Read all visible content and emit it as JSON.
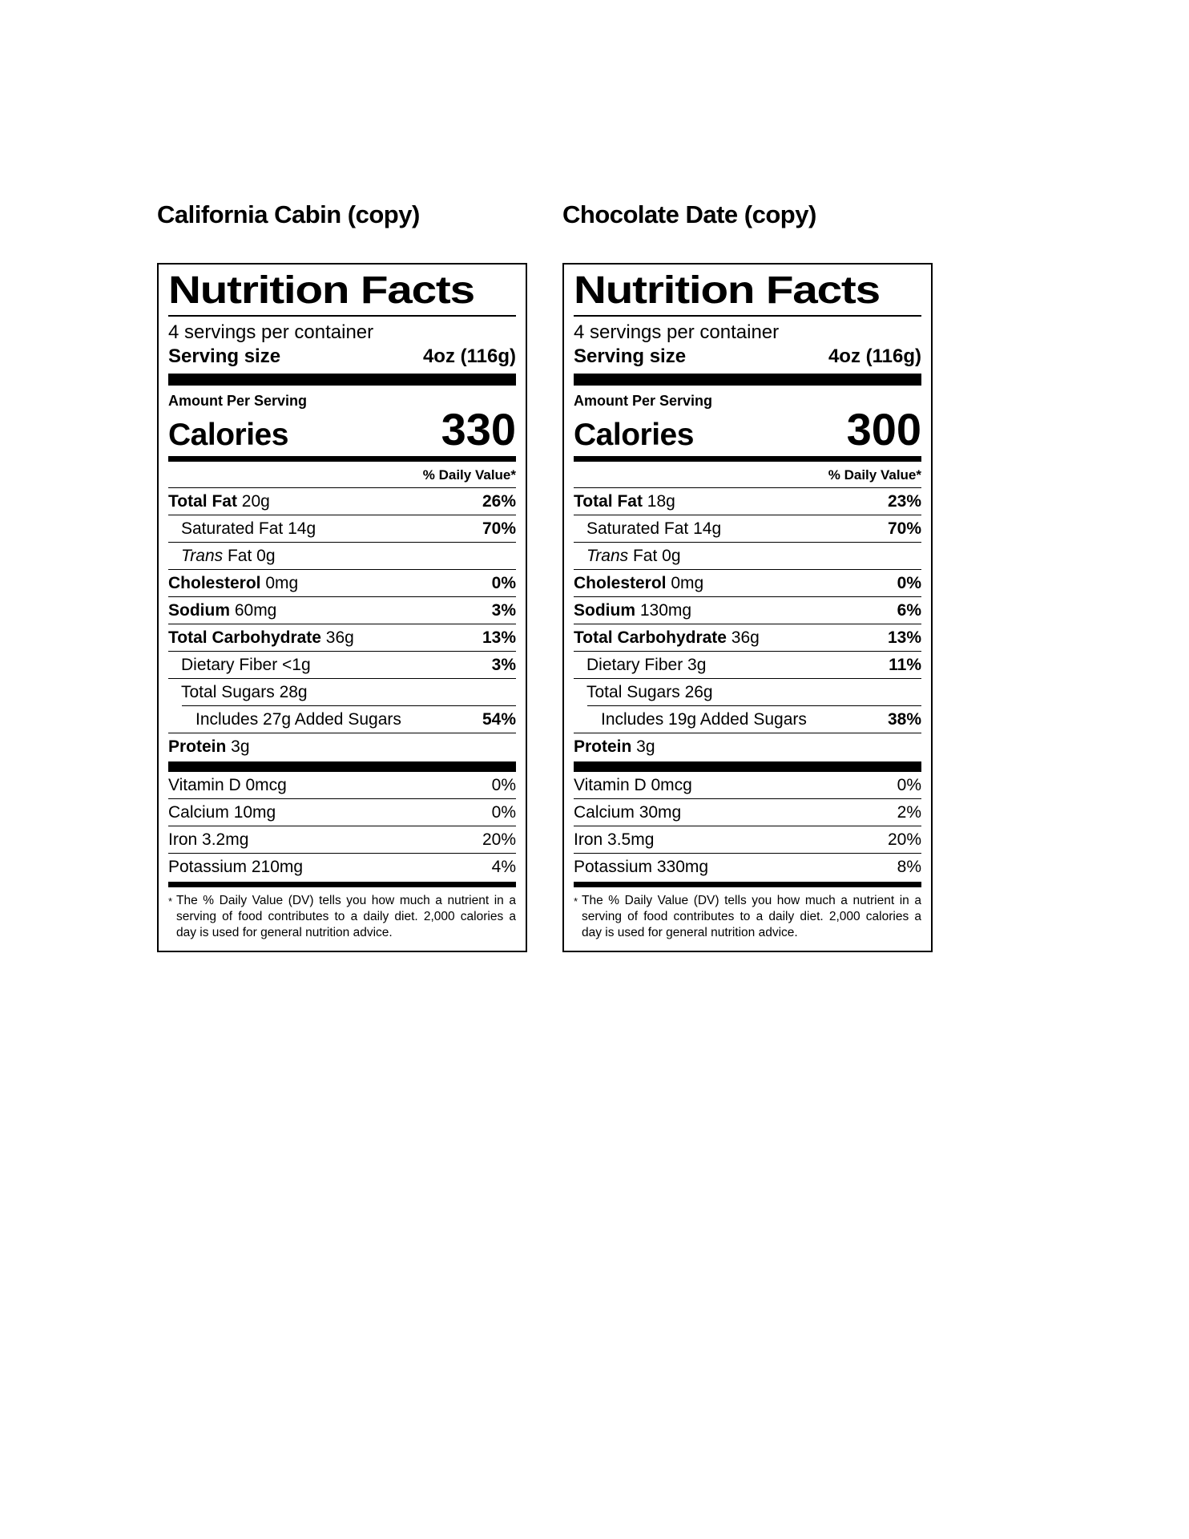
{
  "colors": {
    "ink": "#000000",
    "paper": "#ffffff"
  },
  "labels": [
    {
      "title": "California Cabin (copy)",
      "heading": "Nutrition Facts",
      "servings_per_container": "4 servings per container",
      "serving_size_label": "Serving size",
      "serving_size_value": "4oz (116g)",
      "amount_per_serving": "Amount Per Serving",
      "calories_label": "Calories",
      "calories_value": "330",
      "daily_value_header": "% Daily Value*",
      "main_rows": [
        {
          "name": "Total Fat",
          "amount": "20g",
          "dv": "26%",
          "name_bold": true,
          "dv_bold": true,
          "indent": 0
        },
        {
          "name": "Saturated Fat",
          "amount": "14g",
          "dv": "70%",
          "dv_bold": true,
          "indent": 1
        },
        {
          "name_italic": "Trans",
          "name": "Fat",
          "amount": "0g",
          "dv": "",
          "indent": 1
        },
        {
          "name": "Cholesterol",
          "amount": "0mg",
          "dv": "0%",
          "name_bold": true,
          "dv_bold": true,
          "indent": 0
        },
        {
          "name": "Sodium",
          "amount": "60mg",
          "dv": "3%",
          "name_bold": true,
          "dv_bold": true,
          "indent": 0
        },
        {
          "name": "Total Carbohydrate",
          "amount": "36g",
          "dv": "13%",
          "name_bold": true,
          "dv_bold": true,
          "indent": 0
        },
        {
          "name": "Dietary Fiber",
          "amount": "<1g",
          "dv": "3%",
          "dv_bold": true,
          "indent": 1
        },
        {
          "name": "Total Sugars",
          "amount": "28g",
          "dv": "",
          "indent": 1
        },
        {
          "name": "Includes 27g Added Sugars",
          "amount": "",
          "dv": "54%",
          "dv_bold": true,
          "indent": 2,
          "divider_indent": true
        },
        {
          "name": "Protein",
          "amount": "3g",
          "dv": "",
          "name_bold": true,
          "indent": 0
        }
      ],
      "vitamin_rows": [
        {
          "name": "Vitamin D",
          "amount": "0mcg",
          "dv": "0%"
        },
        {
          "name": "Calcium",
          "amount": "10mg",
          "dv": "0%"
        },
        {
          "name": "Iron",
          "amount": "3.2mg",
          "dv": "20%"
        },
        {
          "name": "Potassium",
          "amount": "210mg",
          "dv": "4%"
        }
      ],
      "footnote_star": "*",
      "footnote": "The % Daily Value (DV) tells you how much a nutrient in a serving of food contributes to a daily diet. 2,000 calories a day is used for general nutrition advice."
    },
    {
      "title": "Chocolate Date (copy)",
      "heading": "Nutrition Facts",
      "servings_per_container": "4 servings per container",
      "serving_size_label": "Serving size",
      "serving_size_value": "4oz (116g)",
      "amount_per_serving": "Amount Per Serving",
      "calories_label": "Calories",
      "calories_value": "300",
      "daily_value_header": "% Daily Value*",
      "main_rows": [
        {
          "name": "Total Fat",
          "amount": "18g",
          "dv": "23%",
          "name_bold": true,
          "dv_bold": true,
          "indent": 0
        },
        {
          "name": "Saturated Fat",
          "amount": "14g",
          "dv": "70%",
          "dv_bold": true,
          "indent": 1
        },
        {
          "name_italic": "Trans",
          "name": "Fat",
          "amount": "0g",
          "dv": "",
          "indent": 1
        },
        {
          "name": "Cholesterol",
          "amount": "0mg",
          "dv": "0%",
          "name_bold": true,
          "dv_bold": true,
          "indent": 0
        },
        {
          "name": "Sodium",
          "amount": "130mg",
          "dv": "6%",
          "name_bold": true,
          "dv_bold": true,
          "indent": 0
        },
        {
          "name": "Total Carbohydrate",
          "amount": "36g",
          "dv": "13%",
          "name_bold": true,
          "dv_bold": true,
          "indent": 0
        },
        {
          "name": "Dietary Fiber",
          "amount": "3g",
          "dv": "11%",
          "dv_bold": true,
          "indent": 1
        },
        {
          "name": "Total Sugars",
          "amount": "26g",
          "dv": "",
          "indent": 1
        },
        {
          "name": "Includes 19g Added Sugars",
          "amount": "",
          "dv": "38%",
          "dv_bold": true,
          "indent": 2,
          "divider_indent": true
        },
        {
          "name": "Protein",
          "amount": "3g",
          "dv": "",
          "name_bold": true,
          "indent": 0
        }
      ],
      "vitamin_rows": [
        {
          "name": "Vitamin D",
          "amount": "0mcg",
          "dv": "0%"
        },
        {
          "name": "Calcium",
          "amount": "30mg",
          "dv": "2%"
        },
        {
          "name": "Iron",
          "amount": "3.5mg",
          "dv": "20%"
        },
        {
          "name": "Potassium",
          "amount": "330mg",
          "dv": "8%"
        }
      ],
      "footnote_star": "*",
      "footnote": "The % Daily Value (DV) tells you how much a nutrient in a serving of food contributes to a daily diet. 2,000 calories a day is used for general nutrition advice."
    }
  ]
}
